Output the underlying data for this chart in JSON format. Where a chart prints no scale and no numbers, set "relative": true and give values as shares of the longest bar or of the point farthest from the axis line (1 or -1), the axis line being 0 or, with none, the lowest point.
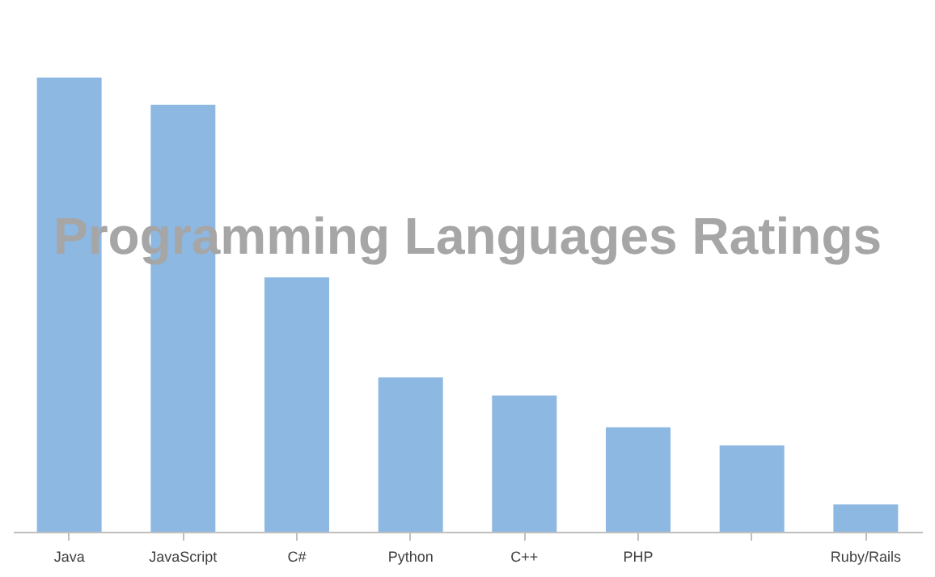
{
  "chart_data": {
    "type": "bar",
    "title": "Programming Languages Ratings",
    "categories": [
      "Java",
      "JavaScript",
      "C#",
      "Python",
      "C++",
      "PHP",
      null,
      "Ruby/Rails"
    ],
    "values": [
      1,
      0.94,
      0.56,
      0.34,
      0.3,
      0.23,
      0.19,
      0.06
    ],
    "color": "#8db8e2",
    "relative": true,
    "grid": false
  }
}
